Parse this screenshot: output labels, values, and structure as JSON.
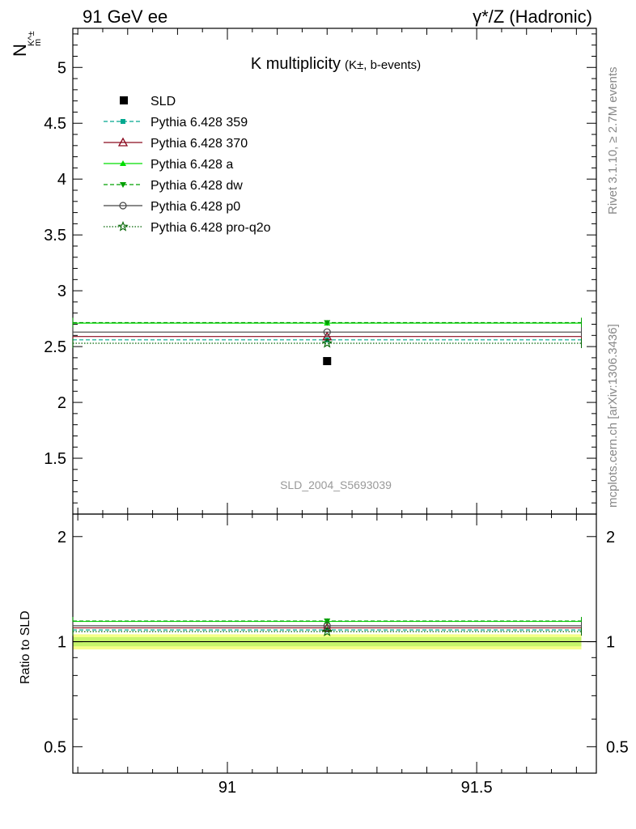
{
  "header": {
    "left": "91 GeV ee",
    "right": "γ*/Z (Hadronic)"
  },
  "side_labels": {
    "rivet": "Rivet 3.1.10, ≥ 2.7M events",
    "mcplots": "mcplots.cern.ch [arXiv:1306.3436]"
  },
  "chart_data": [
    {
      "type": "scatter",
      "title": "K multiplicity",
      "title_suffix": "(K±, b-events)",
      "ylabel": "N",
      "ylabel_sub": "K^±",
      "ylabel_sub2": "m",
      "watermark": "SLD_2004_S5693039",
      "xlim": [
        90.69,
        91.74
      ],
      "ylim": [
        1.0,
        5.35
      ],
      "yticks": [
        1.5,
        2,
        2.5,
        3,
        3.5,
        4,
        4.5,
        5
      ],
      "ytick_labels": [
        "1.5",
        "2",
        "2.5",
        "3",
        "3.5",
        "4",
        "4.5",
        "5"
      ],
      "legend_position": "top-left",
      "data_point": {
        "name": "SLD",
        "x": 91.2,
        "y": 2.37
      },
      "bin": [
        90.69,
        91.71
      ],
      "series": [
        {
          "name": "Pythia 6.428 359",
          "y": 2.56,
          "color": "#00a88f",
          "dash": "5,3",
          "marker": "square-small"
        },
        {
          "name": "Pythia 6.428 370",
          "y": 2.59,
          "color": "#8b0a1f",
          "dash": "",
          "marker": "triangle-open"
        },
        {
          "name": "Pythia 6.428 a",
          "y": 2.71,
          "color": "#00dd00",
          "dash": "",
          "marker": "triangle-filled"
        },
        {
          "name": "Pythia 6.428 dw",
          "y": 2.715,
          "color": "#00a000",
          "dash": "5,3",
          "marker": "triangle-down"
        },
        {
          "name": "Pythia 6.428 p0",
          "y": 2.63,
          "color": "#444444",
          "dash": "",
          "marker": "circle-open"
        },
        {
          "name": "Pythia 6.428 pro-q2o",
          "y": 2.53,
          "color": "#006400",
          "dash": "1.5,2",
          "marker": "star-open"
        }
      ]
    },
    {
      "type": "scatter",
      "ylabel": "Ratio to SLD",
      "xlim": [
        90.69,
        91.74
      ],
      "ylim": [
        0.42,
        2.32
      ],
      "yticks": [
        0.5,
        1,
        2
      ],
      "ytick_labels": [
        "0.5",
        "1",
        "2"
      ],
      "xticks": [
        91,
        91.5
      ],
      "xtick_labels": [
        "91",
        "91.5"
      ],
      "band_inner": [
        0.97,
        1.03
      ],
      "band_outer": [
        0.95,
        1.05
      ],
      "series": [
        {
          "name": "Pythia 6.428 359",
          "y": 1.08
        },
        {
          "name": "Pythia 6.428 370",
          "y": 1.095
        },
        {
          "name": "Pythia 6.428 a",
          "y": 1.143
        },
        {
          "name": "Pythia 6.428 dw",
          "y": 1.146
        },
        {
          "name": "Pythia 6.428 p0",
          "y": 1.11
        },
        {
          "name": "Pythia 6.428 pro-q2o",
          "y": 1.068
        }
      ]
    }
  ]
}
